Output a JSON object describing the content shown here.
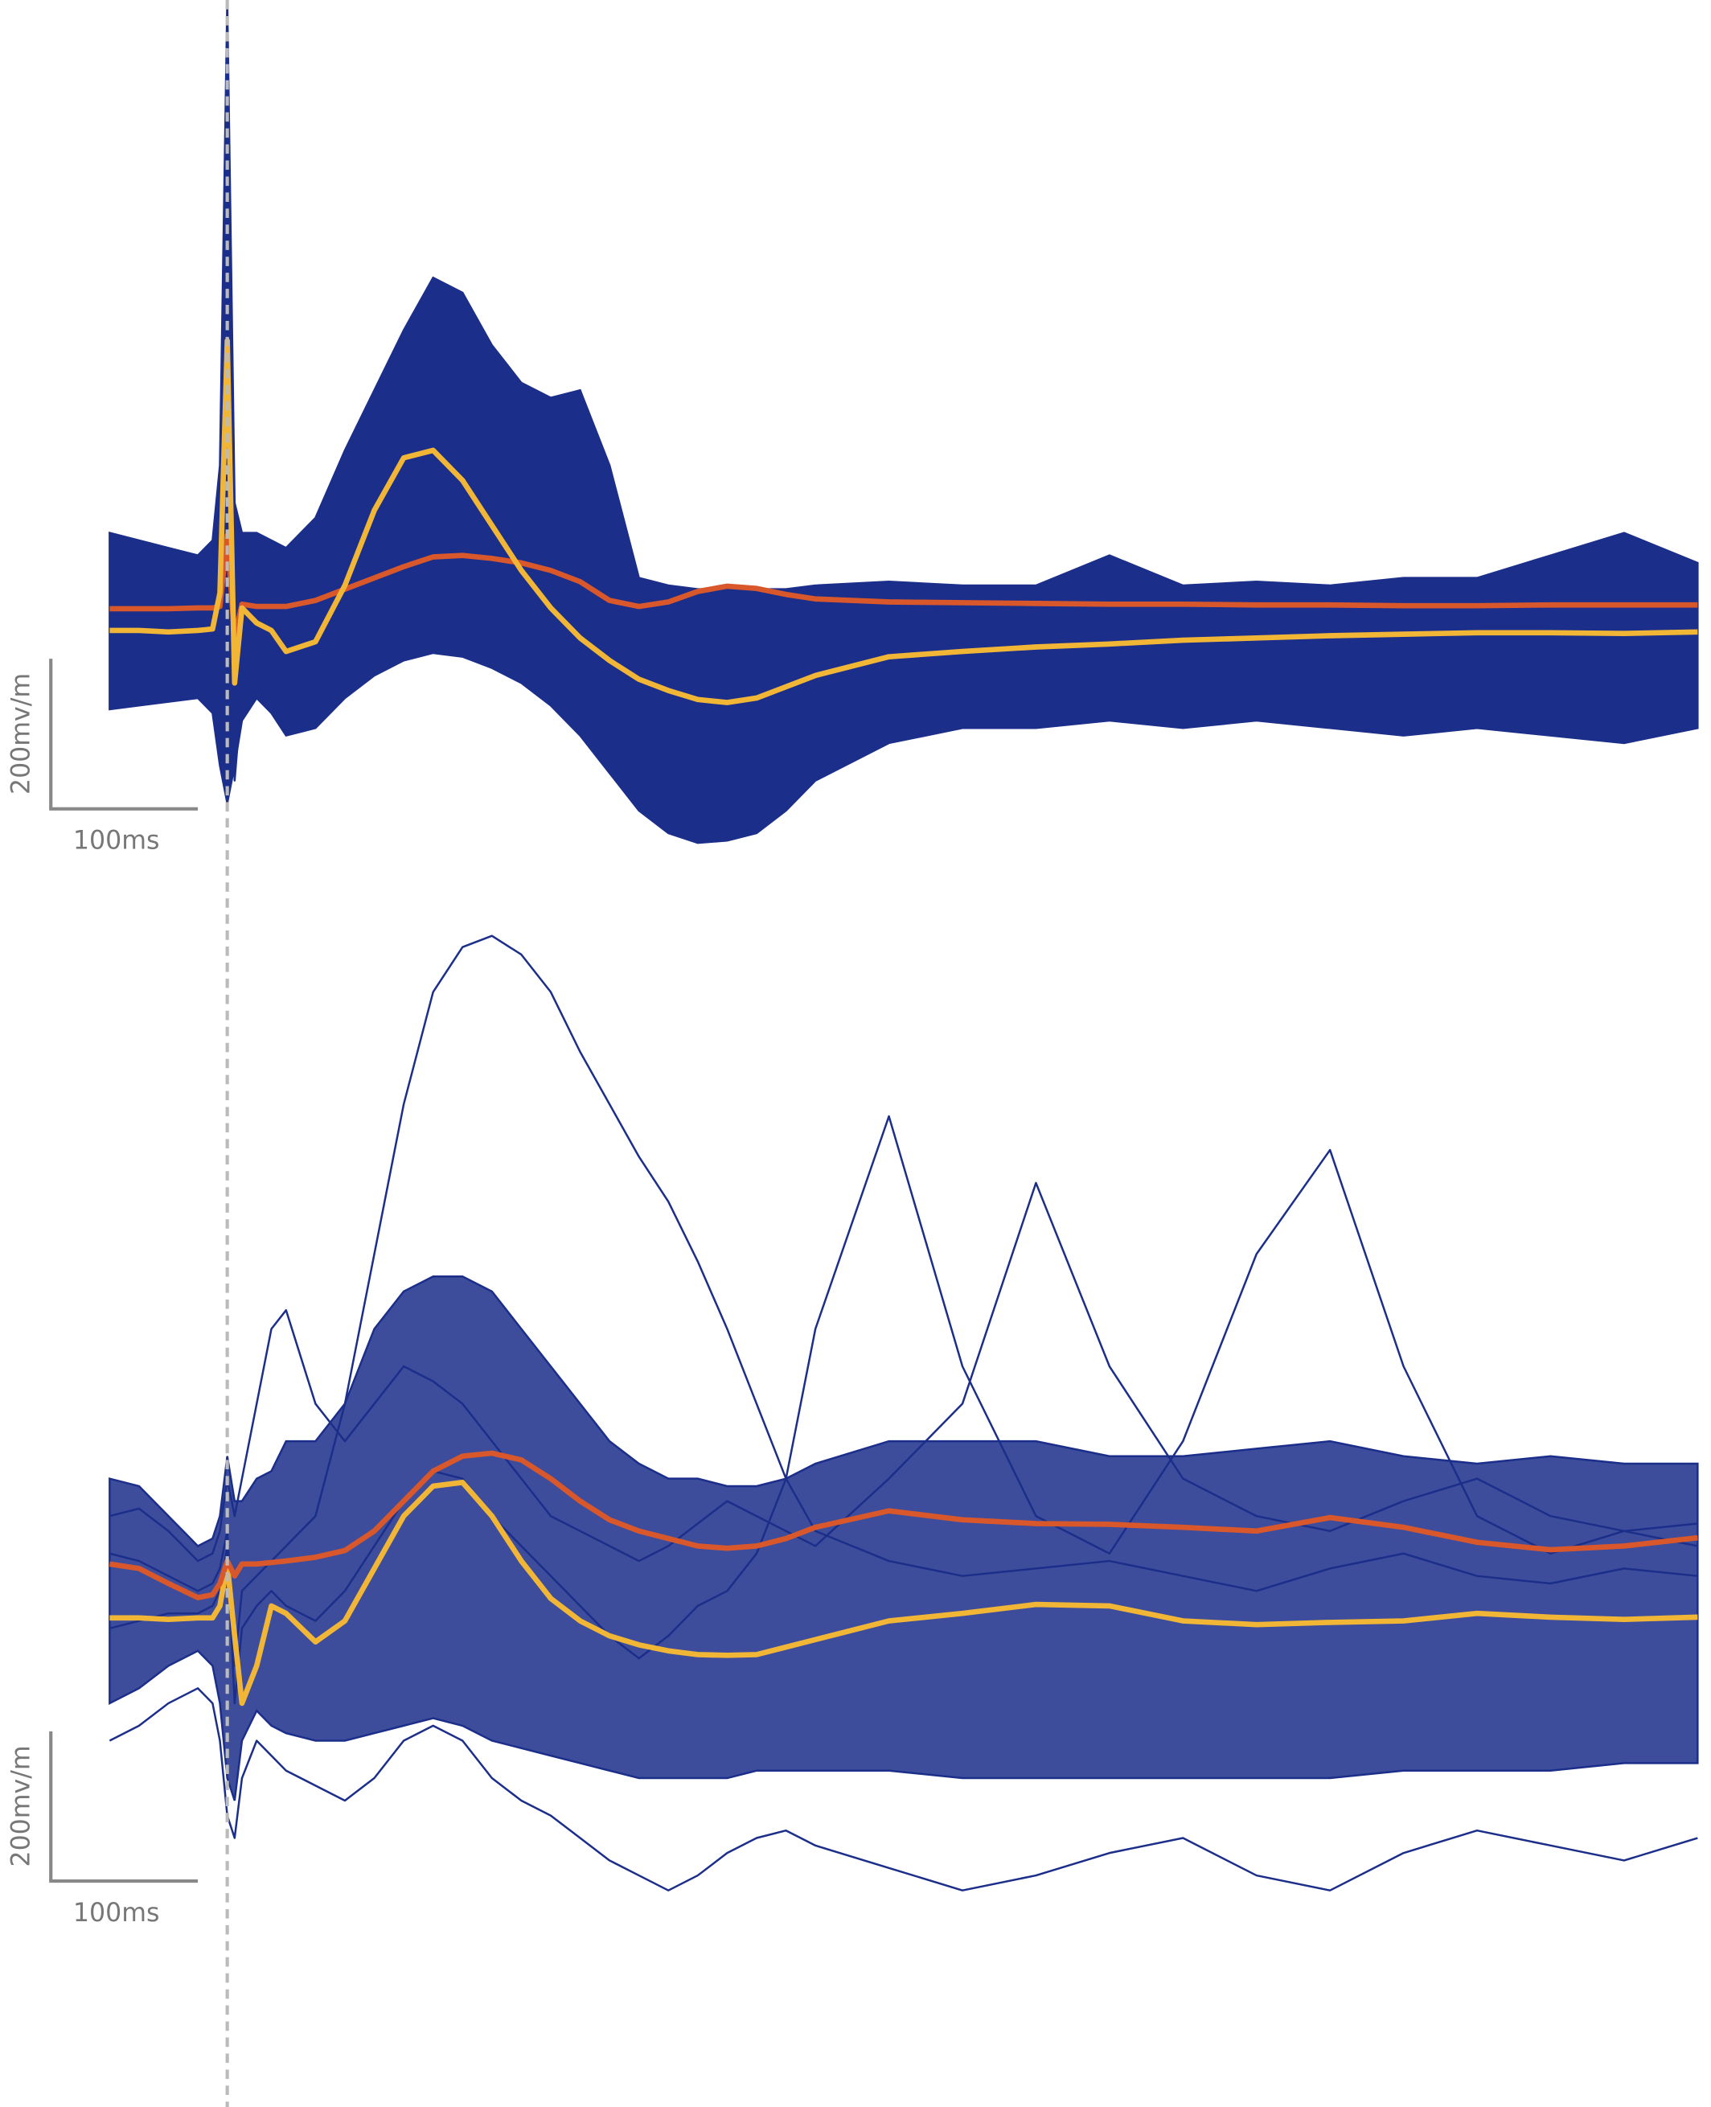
{
  "chart_data": [
    {
      "type": "line",
      "x": [
        -80,
        -60,
        -40,
        -20,
        -10,
        -5,
        0,
        5,
        10,
        20,
        30,
        40,
        60,
        80,
        100,
        120,
        140,
        160,
        180,
        200,
        220,
        240,
        260,
        280,
        300,
        320,
        340,
        360,
        380,
        400,
        450,
        500,
        550,
        600,
        650,
        700,
        750,
        800,
        850,
        900,
        950,
        1000
      ],
      "xlim": [
        -80,
        1000
      ],
      "ylim": [
        -320,
        820
      ],
      "event_x": 0,
      "band": {
        "color": "#1b2e8a",
        "upper": [
          110,
          100,
          90,
          80,
          100,
          200,
          820,
          150,
          110,
          110,
          100,
          90,
          130,
          220,
          300,
          380,
          450,
          430,
          360,
          310,
          290,
          300,
          200,
          50,
          40,
          35,
          35,
          35,
          35,
          40,
          45,
          40,
          40,
          80,
          40,
          45,
          40,
          50,
          50,
          80,
          110,
          70
        ],
        "lower": [
          -125,
          -120,
          -115,
          -110,
          -130,
          -200,
          -250,
          -200,
          -140,
          -110,
          -130,
          -160,
          -150,
          -110,
          -80,
          -60,
          -50,
          -55,
          -70,
          -90,
          -120,
          -160,
          -210,
          -260,
          -290,
          -303,
          -300,
          -290,
          -260,
          -220,
          -170,
          -150,
          -150,
          -140,
          -150,
          -140,
          -150,
          -160,
          -150,
          -160,
          -170,
          -150
        ]
      },
      "series": [
        {
          "color": "#1b2e8a",
          "values": [
            60,
            40,
            30,
            20,
            30,
            100,
            500,
            -150,
            40,
            50,
            30,
            0,
            60,
            180,
            280,
            370,
            440,
            400,
            300,
            200,
            100,
            0,
            -80,
            -150,
            -180,
            -190,
            -180,
            -160,
            -130,
            -100,
            -60,
            -40,
            -30,
            0,
            -20,
            -10,
            -20,
            -10,
            0,
            10,
            40,
            10
          ]
        },
        {
          "color": "#1b2e8a",
          "values": [
            20,
            10,
            0,
            -10,
            0,
            50,
            300,
            -100,
            20,
            0,
            -10,
            -30,
            -10,
            60,
            130,
            180,
            220,
            240,
            250,
            270,
            290,
            300,
            150,
            0,
            -100,
            -200,
            -250,
            -240,
            -200,
            -150,
            -100,
            -80,
            -60,
            -40,
            -50,
            -30,
            -40,
            -30,
            -20,
            -10,
            0,
            -10
          ]
        },
        {
          "color": "#1b2e8a",
          "values": [
            -80,
            -70,
            -60,
            -60,
            -70,
            -100,
            200,
            -220,
            -100,
            -70,
            -90,
            -120,
            -100,
            -50,
            0,
            30,
            50,
            40,
            20,
            -20,
            -70,
            -120,
            -170,
            -220,
            -260,
            -290,
            -290,
            -270,
            -240,
            -200,
            -150,
            -120,
            -110,
            -100,
            -110,
            -100,
            -120,
            -130,
            -120,
            -130,
            -140,
            -120
          ]
        },
        {
          "color": "#d9582b",
          "values": [
            9,
            9,
            9,
            10,
            10,
            12,
            107,
            -30,
            15,
            12,
            12,
            12,
            20,
            35,
            50,
            65,
            78,
            80,
            76,
            70,
            60,
            45,
            20,
            12,
            18,
            32,
            39,
            36,
            28,
            22,
            18,
            17,
            16,
            15,
            15,
            14,
            14,
            13,
            13,
            14,
            14,
            14
          ]
        },
        {
          "color": "#f2b636",
          "values": [
            -20,
            -20,
            -22,
            -20,
            -18,
            30,
            366,
            -90,
            10,
            -10,
            -20,
            -48,
            -35,
            40,
            140,
            210,
            220,
            180,
            120,
            60,
            10,
            -30,
            -60,
            -85,
            -100,
            -112,
            -116,
            -110,
            -95,
            -80,
            -55,
            -48,
            -42,
            -38,
            -33,
            -30,
            -27,
            -25,
            -23,
            -23,
            -24,
            -22
          ]
        }
      ],
      "scale_bar": {
        "x": {
          "value": 100,
          "label": "100ms"
        },
        "y": {
          "value": 200,
          "label": "200mv/m"
        }
      }
    },
    {
      "type": "line",
      "x": [
        -80,
        -60,
        -40,
        -20,
        -10,
        -5,
        0,
        5,
        10,
        20,
        30,
        40,
        60,
        80,
        100,
        120,
        140,
        160,
        180,
        200,
        220,
        240,
        260,
        280,
        300,
        320,
        340,
        360,
        380,
        400,
        450,
        500,
        550,
        600,
        650,
        700,
        750,
        800,
        850,
        900,
        950,
        1000
      ],
      "xlim": [
        -80,
        1000
      ],
      "ylim": [
        -450,
        900
      ],
      "event_x": 0,
      "band": {
        "color": "#1b2e8a",
        "upper": [
          150,
          140,
          100,
          60,
          70,
          100,
          180,
          120,
          120,
          150,
          160,
          200,
          200,
          250,
          350,
          400,
          420,
          420,
          400,
          350,
          300,
          250,
          200,
          170,
          150,
          150,
          140,
          140,
          150,
          170,
          200,
          200,
          200,
          180,
          180,
          190,
          200,
          180,
          170,
          180,
          170,
          170
        ],
        "lower": [
          -150,
          -130,
          -100,
          -80,
          -100,
          -150,
          -250,
          -280,
          -200,
          -160,
          -180,
          -190,
          -200,
          -200,
          -190,
          -180,
          -170,
          -180,
          -200,
          -210,
          -220,
          -230,
          -240,
          -250,
          -250,
          -250,
          -250,
          -240,
          -240,
          -240,
          -240,
          -250,
          -250,
          -250,
          -250,
          -250,
          -250,
          -240,
          -240,
          -240,
          -230,
          -230
        ]
      },
      "series": [
        {
          "color": "#1b2e8a",
          "values": [
            50,
            40,
            20,
            0,
            10,
            30,
            80,
            -100,
            0,
            20,
            40,
            60,
            100,
            250,
            450,
            650,
            800,
            860,
            875,
            850,
            800,
            720,
            650,
            580,
            520,
            440,
            350,
            250,
            150,
            80,
            40,
            20,
            30,
            40,
            20,
            0,
            30,
            50,
            20,
            10,
            30,
            20
          ]
        },
        {
          "color": "#1b2e8a",
          "values": [
            -50,
            -40,
            -30,
            -30,
            -20,
            0,
            60,
            -150,
            -50,
            -20,
            0,
            -20,
            -40,
            0,
            60,
            120,
            160,
            150,
            100,
            60,
            20,
            -20,
            -60,
            -90,
            -60,
            -20,
            0,
            50,
            150,
            350,
            634,
            300,
            100,
            50,
            200,
            450,
            589,
            300,
            100,
            50,
            80,
            60
          ]
        },
        {
          "color": "#1b2e8a",
          "values": [
            -200,
            -180,
            -150,
            -130,
            -150,
            -200,
            -300,
            -330,
            -250,
            -200,
            -220,
            -240,
            -260,
            -280,
            -250,
            -200,
            -180,
            -200,
            -250,
            -280,
            -300,
            -330,
            -360,
            -380,
            -400,
            -380,
            -350,
            -330,
            -320,
            -340,
            -370,
            -400,
            -380,
            -350,
            -330,
            -380,
            -400,
            -350,
            -320,
            -340,
            -360,
            -330
          ]
        },
        {
          "color": "#1b2e8a",
          "values": [
            100,
            110,
            80,
            40,
            50,
            80,
            150,
            100,
            150,
            250,
            350,
            375,
            250,
            200,
            250,
            300,
            280,
            250,
            200,
            150,
            100,
            80,
            60,
            40,
            60,
            90,
            120,
            100,
            80,
            60,
            150,
            250,
            545,
            300,
            150,
            100,
            80,
            120,
            150,
            100,
            80,
            90
          ]
        },
        {
          "color": "#f2b636",
          "values": [
            -36,
            -36,
            -38,
            -36,
            -36,
            -20,
            36,
            -60,
            -150,
            -100,
            -20,
            -30,
            -68,
            -40,
            30,
            100,
            140,
            145,
            100,
            40,
            -10,
            -40,
            -60,
            -72,
            -80,
            -85,
            -86,
            -85,
            -75,
            -65,
            -40,
            -30,
            -18,
            -20,
            -40,
            -45,
            -42,
            -40,
            -30,
            -35,
            -38,
            -35
          ]
        },
        {
          "color": "#d9582b",
          "values": [
            36,
            30,
            10,
            -9,
            -5,
            10,
            40,
            20,
            36,
            36,
            38,
            40,
            45,
            54,
            80,
            120,
            160,
            180,
            184,
            175,
            150,
            120,
            95,
            80,
            70,
            60,
            57,
            60,
            70,
            85,
            107,
            95,
            90,
            89,
            85,
            80,
            98,
            85,
            65,
            55,
            60,
            71
          ]
        }
      ],
      "scale_bar": {
        "x": {
          "value": 100,
          "label": "100ms"
        },
        "y": {
          "value": 200,
          "label": "200mv/m"
        }
      }
    }
  ]
}
